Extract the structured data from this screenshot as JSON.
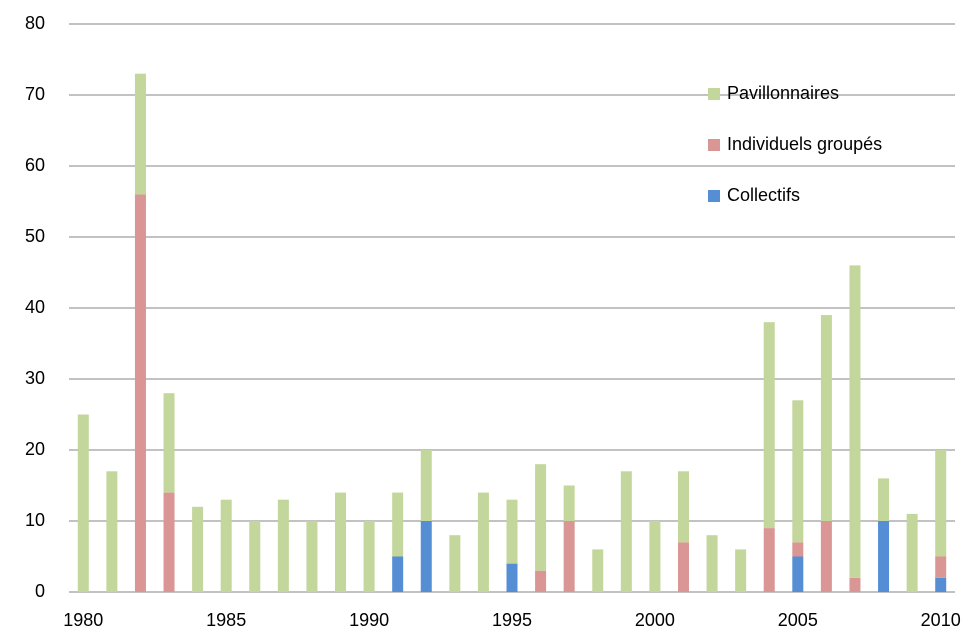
{
  "chart_data": {
    "type": "stacked_bar",
    "categories": [
      "1980",
      null,
      null,
      null,
      null,
      "1985",
      null,
      null,
      null,
      null,
      "1990",
      null,
      null,
      null,
      null,
      "1995",
      null,
      null,
      null,
      null,
      "2000",
      null,
      null,
      null,
      null,
      "2005",
      null,
      null,
      null,
      null,
      "2010"
    ],
    "series": [
      {
        "name": "Pavillonnaires",
        "color": "#c3d69b",
        "values": [
          25,
          17,
          17,
          14,
          12,
          13,
          10,
          13,
          10,
          14,
          10,
          9,
          10,
          8,
          14,
          9,
          15,
          5,
          6,
          17,
          10,
          10,
          8,
          6,
          29,
          20,
          29,
          44,
          6,
          11,
          15
        ]
      },
      {
        "name": "Individuels groupés",
        "color": "#d99694",
        "values": [
          0,
          0,
          56,
          14,
          0,
          0,
          0,
          0,
          0,
          0,
          0,
          0,
          0,
          0,
          0,
          0,
          3,
          10,
          0,
          0,
          0,
          7,
          0,
          0,
          9,
          2,
          10,
          2,
          0,
          0,
          3
        ]
      },
      {
        "name": "Collectifs",
        "color": "#558ed5",
        "values": [
          0,
          0,
          0,
          0,
          0,
          0,
          0,
          0,
          0,
          0,
          0,
          5,
          10,
          0,
          0,
          4,
          0,
          0,
          0,
          0,
          0,
          0,
          0,
          0,
          0,
          5,
          0,
          0,
          10,
          0,
          2
        ]
      }
    ],
    "ylim": [
      0,
      80
    ],
    "yticks": [
      0,
      10,
      20,
      30,
      40,
      50,
      60,
      70,
      80
    ],
    "grid": true,
    "legend": "top-right"
  }
}
